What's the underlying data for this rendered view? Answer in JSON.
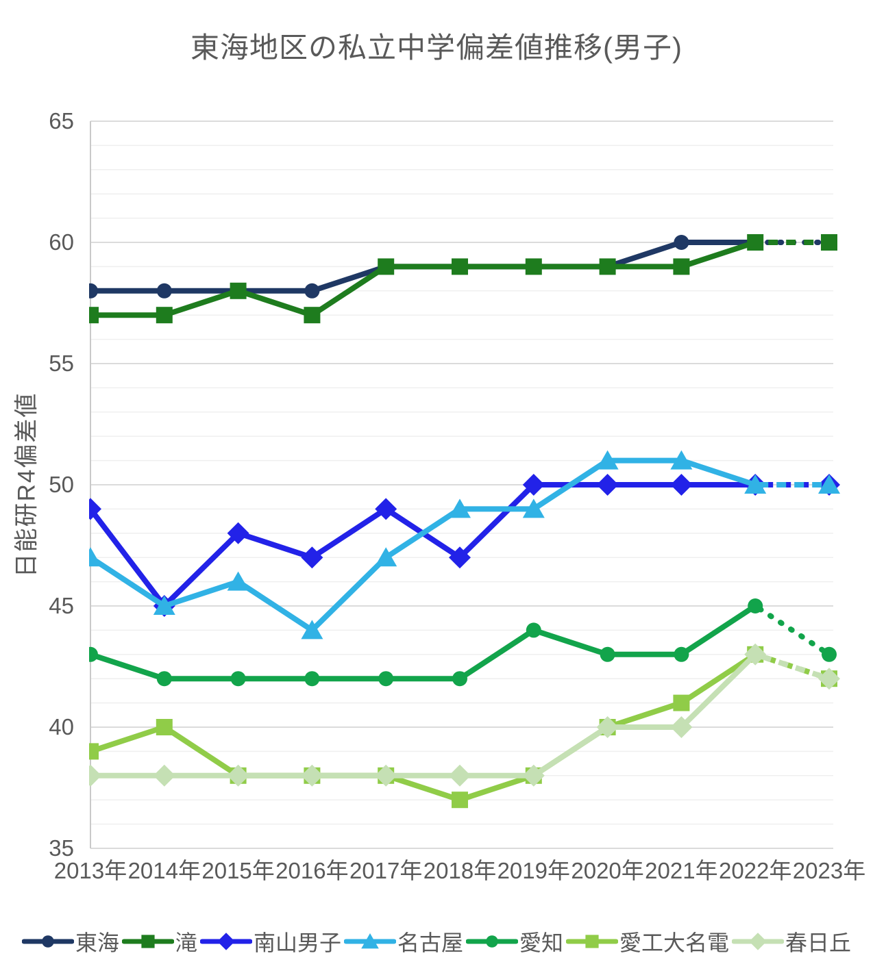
{
  "chart_data": {
    "type": "line",
    "title": "東海地区の私立中学偏差値推移(男子)",
    "ylabel": "日能研R4偏差値",
    "categories": [
      "2013年",
      "2014年",
      "2015年",
      "2016年",
      "2017年",
      "2018年",
      "2019年",
      "2020年",
      "2021年",
      "2022年",
      "2023年"
    ],
    "ylim": [
      35,
      65
    ],
    "yticks": [
      35,
      40,
      45,
      50,
      55,
      60,
      65
    ],
    "grid": {
      "horizontal_minor_step": 1,
      "horizontal_major_step": 5
    },
    "legend_position": "bottom",
    "final_segment_style": "dotted projection from 2022 to 2023",
    "series": [
      {
        "id": "tokai",
        "name": "東海",
        "marker": "circle",
        "color": "#1F3864",
        "values": [
          58,
          58,
          58,
          58,
          59,
          59,
          59,
          59,
          60,
          60,
          60
        ]
      },
      {
        "id": "taki",
        "name": "滝",
        "marker": "square",
        "color": "#1E7C1E",
        "values": [
          57,
          57,
          58,
          57,
          59,
          59,
          59,
          59,
          59,
          60,
          60
        ]
      },
      {
        "id": "nanzan-danshi",
        "name": "南山男子",
        "marker": "diamond",
        "color": "#2222E8",
        "values": [
          49,
          45,
          48,
          47,
          49,
          47,
          50,
          50,
          50,
          50,
          50
        ]
      },
      {
        "id": "nagoya",
        "name": "名古屋",
        "marker": "triangle",
        "color": "#31B2E5",
        "values": [
          47,
          45,
          46,
          44,
          47,
          49,
          49,
          51,
          51,
          50,
          50
        ]
      },
      {
        "id": "aichi",
        "name": "愛知",
        "marker": "circle",
        "color": "#12A44B",
        "values": [
          43,
          42,
          42,
          42,
          42,
          42,
          44,
          43,
          43,
          45,
          43
        ]
      },
      {
        "id": "aikodai-meiden",
        "name": "愛工大名電",
        "marker": "square",
        "color": "#90CC48",
        "values": [
          39,
          40,
          38,
          38,
          38,
          37,
          38,
          40,
          41,
          43,
          42
        ]
      },
      {
        "id": "kasugaoka",
        "name": "春日丘",
        "marker": "diamond",
        "color": "#C5E0B4",
        "values": [
          38,
          38,
          38,
          38,
          38,
          38,
          38,
          40,
          40,
          43,
          42
        ]
      }
    ]
  }
}
